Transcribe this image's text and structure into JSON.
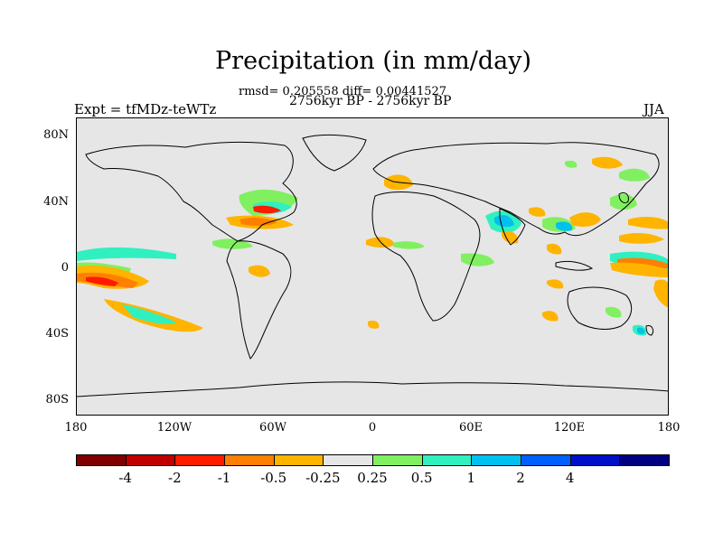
{
  "title": "Precipitation (in mm/day)",
  "stats": "rmsd= 0.205558 diff= 0.00441527",
  "period": "2756kyr BP - 2756kyr BP",
  "experiment": "Expt = tfMDz-teWTz",
  "season": "JJA",
  "map": {
    "lat_ticks": [
      "80N",
      "40N",
      "0",
      "40S",
      "80S"
    ],
    "lon_ticks": [
      "180",
      "120W",
      "60W",
      "0",
      "60E",
      "120E",
      "180"
    ],
    "land_color": "#e6e6e6"
  },
  "colorbar": {
    "colors": [
      "#800000",
      "#c00000",
      "#ff1a00",
      "#ff7f00",
      "#ffb400",
      "#e6e6e6",
      "#80f060",
      "#30f0c0",
      "#00c0f0",
      "#0060ff",
      "#0010c8",
      "#000080"
    ],
    "labels": [
      "-4",
      "-2",
      "-1",
      "-0.5",
      "-0.25",
      "0.25",
      "0.5",
      "1",
      "2",
      "4"
    ]
  }
}
